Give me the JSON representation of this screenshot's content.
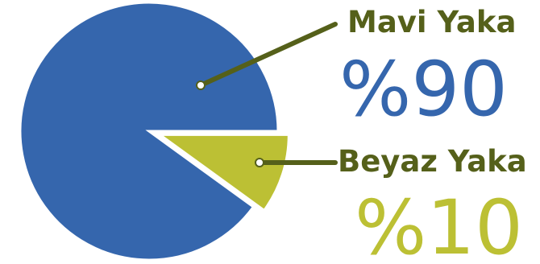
{
  "chart_data": {
    "type": "pie",
    "slices": [
      {
        "label": "Mavi Yaka",
        "value": 90,
        "display": "%90",
        "color": "#3566ad",
        "label_color": "#55601a"
      },
      {
        "label": "Beyaz Yaka",
        "value": 10,
        "display": "%10",
        "color": "#bcc034",
        "label_color": "#55601a"
      }
    ],
    "legend": "right",
    "title": "",
    "leader_line_color": "#55601a",
    "slice_separator_color": "#ffffff"
  }
}
